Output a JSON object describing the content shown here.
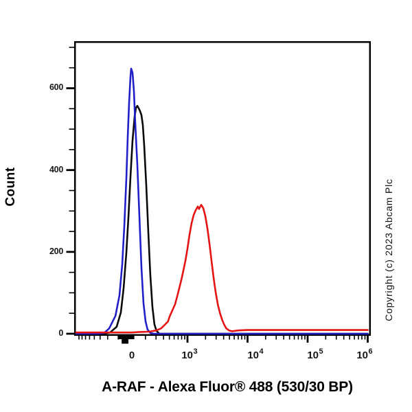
{
  "y_axis_title": "Count",
  "x_axis_title": "A-RAF - Alexa Fluor® 488 (530/30 BP)",
  "copyright": "Copyright (c) 2023 Abcam Plc",
  "chart_data": {
    "type": "area",
    "subtype": "flow-cytometry-histogram-overlay",
    "title": "",
    "xlabel": "A-RAF - Alexa Fluor® 488 (530/30 BP)",
    "ylabel": "Count",
    "x_scale": "biexponential (logicle): linear region around 0, log decades to 10^6",
    "ylim": [
      0,
      715
    ],
    "grid": false,
    "legend": "none",
    "y_major_ticks": [
      0,
      200,
      400,
      600
    ],
    "y_minor_ticks": [
      50,
      100,
      150,
      250,
      300,
      350,
      450,
      500,
      550,
      650,
      700
    ],
    "x_labeled_ticks": [
      {
        "label": "0",
        "value": 0
      },
      {
        "base": "10",
        "exp": "3",
        "value": 1000
      },
      {
        "base": "10",
        "exp": "4",
        "value": 10000
      },
      {
        "base": "10",
        "exp": "5",
        "value": 100000
      },
      {
        "base": "10",
        "exp": "6",
        "value": 1000000
      }
    ],
    "x_major_tick_values": [
      1000,
      10000,
      100000,
      1000000
    ],
    "x_minor_tick_values": [
      -900,
      -800,
      -700,
      -600,
      -500,
      -400,
      -300,
      -200,
      200,
      300,
      400,
      500,
      600,
      700,
      800,
      900,
      2000,
      3000,
      4000,
      5000,
      6000,
      7000,
      8000,
      9000,
      20000,
      30000,
      40000,
      50000,
      60000,
      70000,
      80000,
      90000,
      200000,
      300000,
      400000,
      500000,
      600000,
      700000,
      800000,
      900000
    ],
    "x_dense_tick_values": [
      -190,
      -178,
      -166,
      -154,
      -142,
      -130,
      -118,
      -106,
      -94,
      -82,
      -70,
      -58,
      -46,
      -34,
      -22,
      -10,
      2,
      14,
      25
    ],
    "x_dense_block_range": [
      -150,
      -50
    ],
    "series": [
      {
        "name": "control-black",
        "color": "#0a0a0a",
        "peak_count": 557,
        "points": [
          [
            -1000,
            0
          ],
          [
            -364,
            0
          ],
          [
            -273,
            3
          ],
          [
            -212,
            17
          ],
          [
            -162,
            52
          ],
          [
            -121,
            111
          ],
          [
            -81,
            198
          ],
          [
            -50,
            287
          ],
          [
            -20,
            383
          ],
          [
            10,
            472
          ],
          [
            40,
            530
          ],
          [
            61,
            552
          ],
          [
            81,
            557
          ],
          [
            101,
            551
          ],
          [
            121,
            544
          ],
          [
            141,
            534
          ],
          [
            162,
            510
          ],
          [
            182,
            460
          ],
          [
            206,
            363
          ],
          [
            223,
            248
          ],
          [
            241,
            144
          ],
          [
            261,
            65
          ],
          [
            282,
            23
          ],
          [
            305,
            7
          ],
          [
            340,
            0
          ],
          [
            1000,
            0
          ],
          [
            1000000,
            0
          ]
        ]
      },
      {
        "name": "control-blue",
        "color": "#2120c8",
        "peak_count": 648,
        "points": [
          [
            -1000,
            0
          ],
          [
            -500,
            0
          ],
          [
            -424,
            0
          ],
          [
            -343,
            2
          ],
          [
            -283,
            13
          ],
          [
            -222,
            44
          ],
          [
            -182,
            94
          ],
          [
            -141,
            170
          ],
          [
            -111,
            262
          ],
          [
            -81,
            379
          ],
          [
            -61,
            480
          ],
          [
            -40,
            564
          ],
          [
            -20,
            628
          ],
          [
            -10,
            648
          ],
          [
            10,
            638
          ],
          [
            30,
            594
          ],
          [
            50,
            517
          ],
          [
            81,
            413
          ],
          [
            111,
            287
          ],
          [
            141,
            161
          ],
          [
            172,
            74
          ],
          [
            201,
            30
          ],
          [
            217,
            10
          ],
          [
            241,
            2
          ],
          [
            275,
            0
          ],
          [
            1000,
            0
          ],
          [
            10000,
            0
          ],
          [
            1000000,
            0
          ]
        ]
      },
      {
        "name": "a-raf-red",
        "color": "#e61313",
        "peak_count": 315,
        "points": [
          [
            -1000,
            3
          ],
          [
            -500,
            3
          ],
          [
            -100,
            3
          ],
          [
            0,
            3
          ],
          [
            100,
            4
          ],
          [
            232,
            5
          ],
          [
            302,
            8
          ],
          [
            363,
            13
          ],
          [
            421,
            22
          ],
          [
            475,
            30
          ],
          [
            504,
            42
          ],
          [
            560,
            57
          ],
          [
            623,
            72
          ],
          [
            674,
            91
          ],
          [
            729,
            111
          ],
          [
            789,
            131
          ],
          [
            854,
            154
          ],
          [
            924,
            178
          ],
          [
            1000,
            208
          ],
          [
            1082,
            242
          ],
          [
            1171,
            270
          ],
          [
            1267,
            290
          ],
          [
            1371,
            302
          ],
          [
            1484,
            311
          ],
          [
            1562,
            305
          ],
          [
            1693,
            315
          ],
          [
            1834,
            307
          ],
          [
            1987,
            287
          ],
          [
            2153,
            257
          ],
          [
            2333,
            218
          ],
          [
            2528,
            176
          ],
          [
            2739,
            134
          ],
          [
            2968,
            99
          ],
          [
            3216,
            70
          ],
          [
            3484,
            50
          ],
          [
            3775,
            34
          ],
          [
            4091,
            22
          ],
          [
            4432,
            13
          ],
          [
            4929,
            8
          ],
          [
            5482,
            6
          ],
          [
            7000,
            8
          ],
          [
            10000,
            9
          ],
          [
            100000,
            9
          ],
          [
            1000000,
            9
          ]
        ]
      }
    ]
  }
}
